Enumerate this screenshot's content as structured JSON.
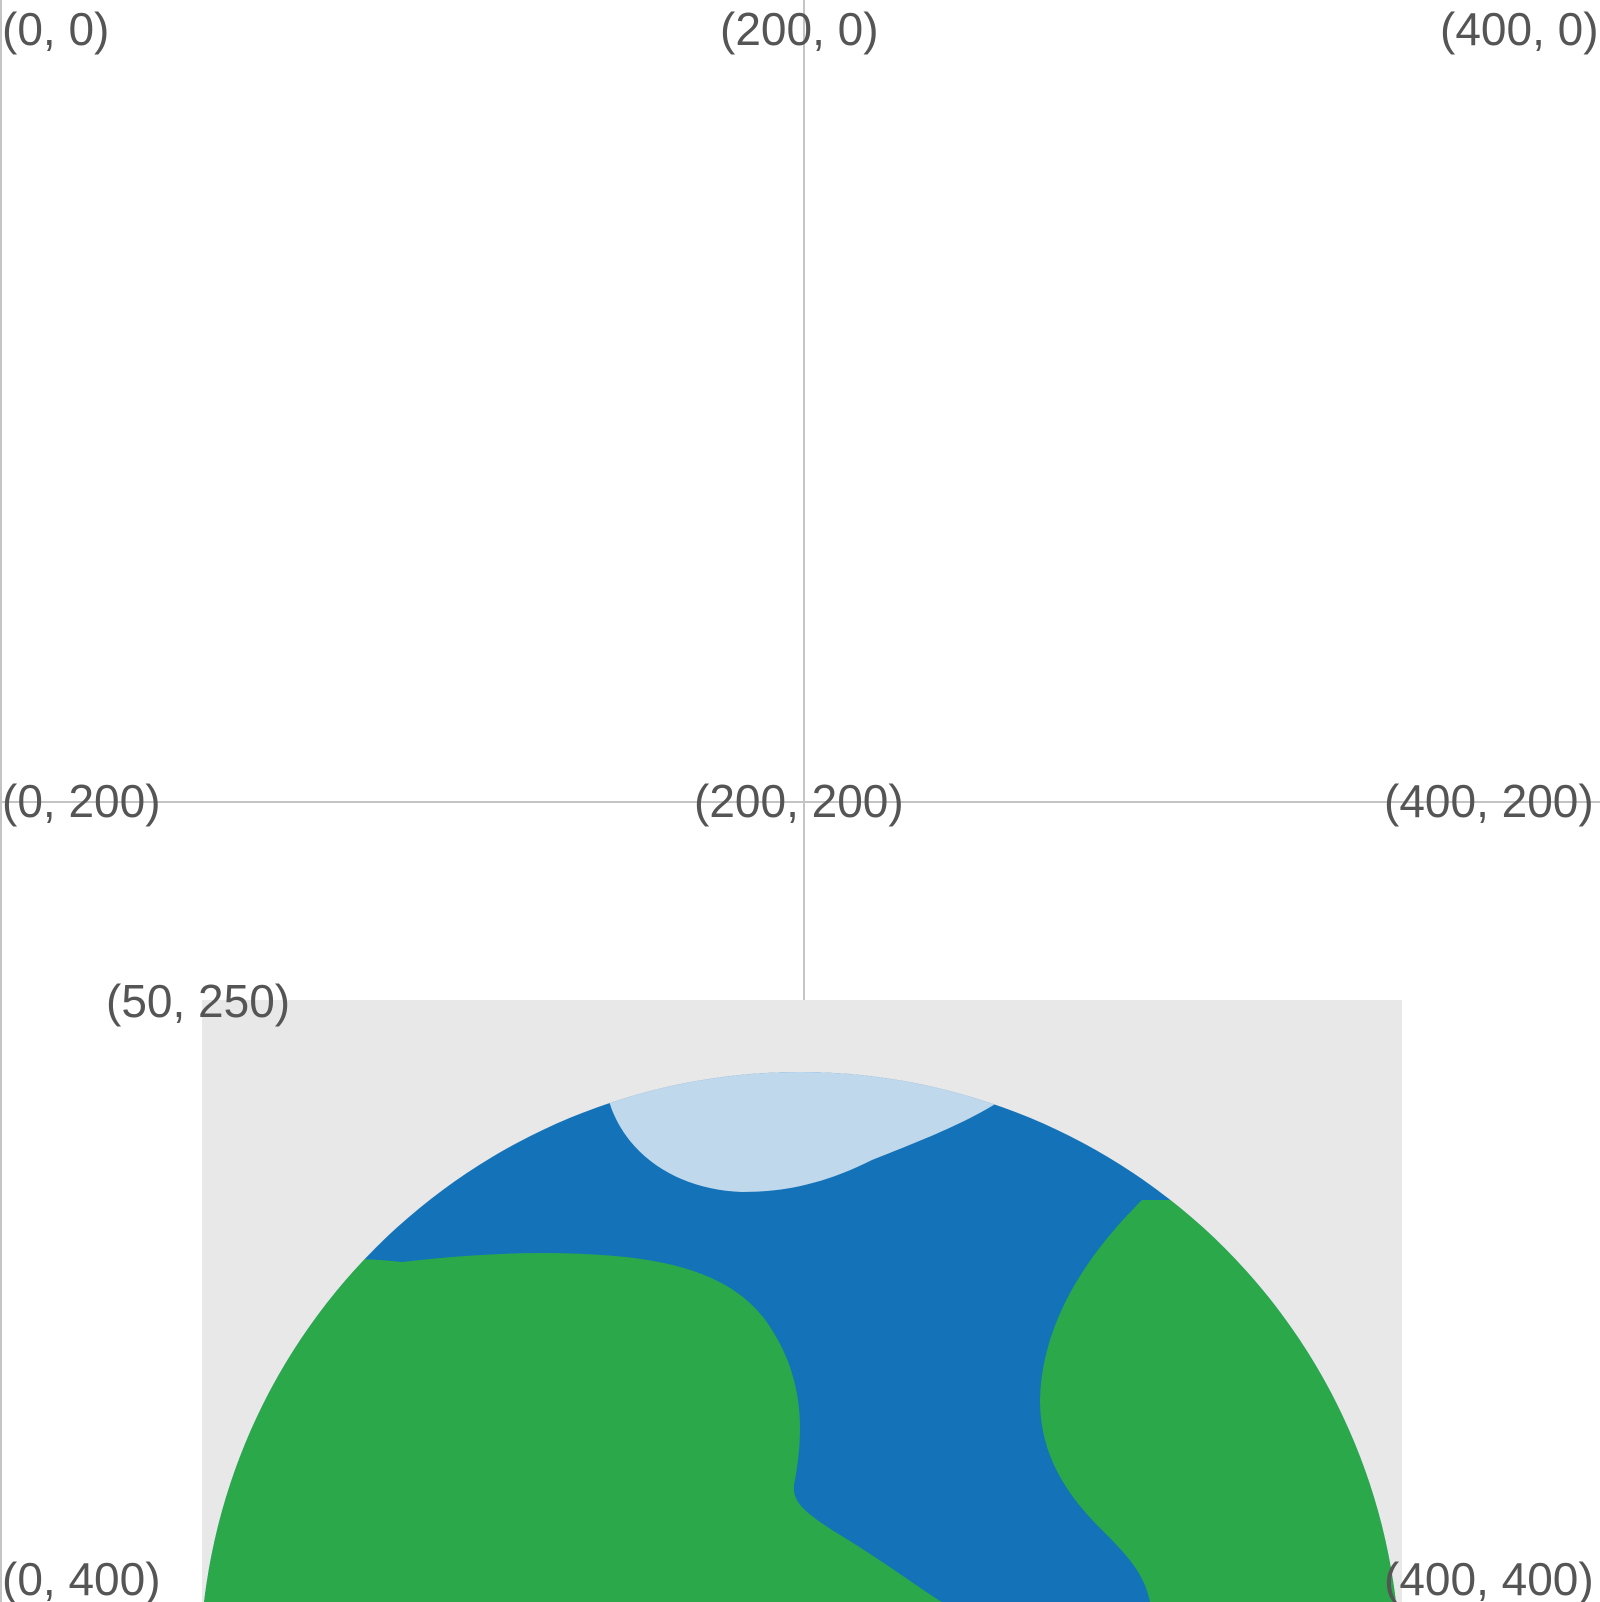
{
  "grid": {
    "line_color": "#c4c4c4",
    "label_color": "#555555"
  },
  "labels": {
    "origin": "(0, 0)",
    "top_middle": "(200, 0)",
    "top_right": "(400, 0)",
    "middle_left": "(0, 200)",
    "center": "(200, 200)",
    "middle_right": "(400, 200)",
    "image_corner": "(50, 250)",
    "bottom_left": "(0, 400)",
    "bottom_right": "(400, 400)"
  },
  "earth_image": {
    "background_color": "#e8e8e8",
    "ocean_color": "#1372b8",
    "land_color": "#2aa84a",
    "ice_color": "#bfd8ec"
  }
}
